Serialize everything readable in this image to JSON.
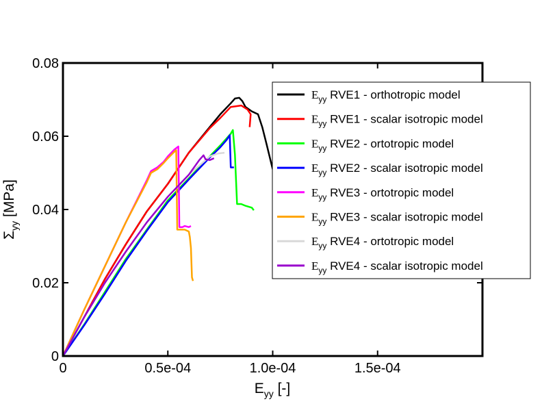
{
  "chart_data": {
    "type": "line",
    "xlabel": {
      "main": "E",
      "sub": "yy",
      "unit": " [-]"
    },
    "ylabel": {
      "main": "Σ",
      "sub": "yy",
      "unit": " [MPa]"
    },
    "xlim": [
      0,
      0.0002
    ],
    "ylim": [
      0,
      0.08
    ],
    "xticks": [
      {
        "value": 0,
        "label": "0"
      },
      {
        "value": 5e-05,
        "label": "0.5e-04"
      },
      {
        "value": 0.0001,
        "label": "1.0e-04"
      },
      {
        "value": 0.00015,
        "label": "1.5e-04"
      }
    ],
    "yticks": [
      {
        "value": 0,
        "label": "0"
      },
      {
        "value": 0.02,
        "label": "0.02"
      },
      {
        "value": 0.04,
        "label": "0.04"
      },
      {
        "value": 0.06,
        "label": "0.06"
      },
      {
        "value": 0.08,
        "label": "0.08"
      }
    ],
    "legend_position": "top-right",
    "series": [
      {
        "name": "RVE1 - orthotropic model",
        "symbol": "E",
        "symbol_sub": "yy",
        "color": "#000000",
        "x": [
          0,
          1e-05,
          2e-05,
          3e-05,
          4e-05,
          5e-05,
          6e-05,
          7e-05,
          7.5e-05,
          8e-05,
          8.2e-05,
          8.4e-05,
          8.55e-05,
          8.7e-05,
          9e-05,
          9.3e-05,
          9.5e-05,
          9.7e-05,
          0.0001
        ],
        "y": [
          0,
          0.0105,
          0.021,
          0.0305,
          0.0395,
          0.047,
          0.0555,
          0.0625,
          0.066,
          0.069,
          0.0703,
          0.0705,
          0.0696,
          0.068,
          0.0668,
          0.066,
          0.0625,
          0.058,
          0.051
        ]
      },
      {
        "name": "RVE1 - scalar isotropic model",
        "symbol": "E",
        "symbol_sub": "yy",
        "color": "#ff0000",
        "x": [
          0,
          1e-05,
          2e-05,
          3e-05,
          4e-05,
          5e-05,
          6e-05,
          7e-05,
          7.5e-05,
          8e-05,
          8.5e-05,
          8.8e-05,
          8.95e-05,
          8.9e-05
        ],
        "y": [
          0,
          0.0105,
          0.021,
          0.0305,
          0.0395,
          0.047,
          0.0555,
          0.0622,
          0.065,
          0.068,
          0.0684,
          0.0673,
          0.066,
          0.0625
        ]
      },
      {
        "name": "RVE2 - ortotropic model",
        "symbol": "E",
        "symbol_sub": "yy",
        "color": "#00ff00",
        "x": [
          0,
          1e-05,
          2e-05,
          3e-05,
          4e-05,
          5e-05,
          6e-05,
          7e-05,
          7.5e-05,
          8e-05,
          8.1e-05,
          8.2e-05,
          8.3e-05,
          8.5e-05,
          8.7e-05,
          9e-05,
          9.1e-05
        ],
        "y": [
          0,
          0.0085,
          0.0175,
          0.0265,
          0.0345,
          0.0425,
          0.0485,
          0.0545,
          0.0575,
          0.0607,
          0.0617,
          0.055,
          0.0415,
          0.0415,
          0.041,
          0.0405,
          0.0398
        ]
      },
      {
        "name": "RVE2 - scalar isotropic model",
        "symbol": "E",
        "symbol_sub": "yy",
        "color": "#0000ff",
        "x": [
          0,
          1e-05,
          2e-05,
          3e-05,
          4e-05,
          5e-05,
          6e-05,
          7e-05,
          7.5e-05,
          7.8e-05,
          7.95e-05,
          8e-05,
          8.15e-05
        ],
        "y": [
          0,
          0.0083,
          0.017,
          0.026,
          0.0342,
          0.042,
          0.0482,
          0.0542,
          0.057,
          0.059,
          0.0603,
          0.0515,
          0.0515
        ]
      },
      {
        "name": "RVE3 - ortotropic model",
        "symbol": "E",
        "symbol_sub": "yy",
        "color": "#ff00ff",
        "x": [
          0,
          1e-05,
          2e-05,
          3e-05,
          4e-05,
          4.2e-05,
          4.5e-05,
          4.8e-05,
          5e-05,
          5.3e-05,
          5.5e-05,
          5.55e-05,
          5.7e-05,
          5.8e-05,
          6e-05,
          6.1e-05
        ],
        "y": [
          0,
          0.0125,
          0.0245,
          0.0365,
          0.048,
          0.0505,
          0.0515,
          0.053,
          0.0545,
          0.0563,
          0.0572,
          0.0352,
          0.0352,
          0.0355,
          0.0352,
          0.0355
        ]
      },
      {
        "name": "RVE3 - scalar isotropic model",
        "symbol": "E",
        "symbol_sub": "yy",
        "color": "#ffa500",
        "x": [
          0,
          1e-05,
          2e-05,
          3e-05,
          4e-05,
          4.2e-05,
          4.5e-05,
          4.8e-05,
          5e-05,
          5.3e-05,
          5.4e-05,
          5.45e-05,
          5.6e-05,
          5.8e-05,
          6e-05,
          6.05e-05,
          6.1e-05,
          6.15e-05,
          6.2e-05
        ],
        "y": [
          0,
          0.0125,
          0.0245,
          0.0365,
          0.0475,
          0.05,
          0.051,
          0.0527,
          0.054,
          0.0557,
          0.0562,
          0.0345,
          0.0345,
          0.0345,
          0.034,
          0.0325,
          0.0295,
          0.0215,
          0.0205
        ]
      },
      {
        "name": "RVE4 - ortotropic model",
        "symbol": "E",
        "symbol_sub": "yy",
        "color": "#d9d9d9",
        "x": [
          0,
          1e-05,
          2e-05,
          3e-05,
          4e-05,
          5e-05,
          6e-05,
          6.5e-05,
          7e-05,
          7.4e-05,
          7.7e-05
        ],
        "y": [
          0,
          0.0105,
          0.02,
          0.0285,
          0.0365,
          0.0435,
          0.0495,
          0.052,
          0.0545,
          0.0553,
          0.0555
        ]
      },
      {
        "name": "RVE4 - scalar isotropic model",
        "symbol": "E",
        "symbol_sub": "yy",
        "color": "#9900cc",
        "x": [
          0,
          1e-05,
          2e-05,
          3e-05,
          4e-05,
          5e-05,
          6e-05,
          6.5e-05,
          6.7e-05,
          6.8e-05,
          7e-05,
          7.2e-05
        ],
        "y": [
          0,
          0.0105,
          0.02,
          0.0285,
          0.0365,
          0.0435,
          0.0495,
          0.0535,
          0.0548,
          0.0537,
          0.0535,
          0.054
        ]
      }
    ]
  }
}
